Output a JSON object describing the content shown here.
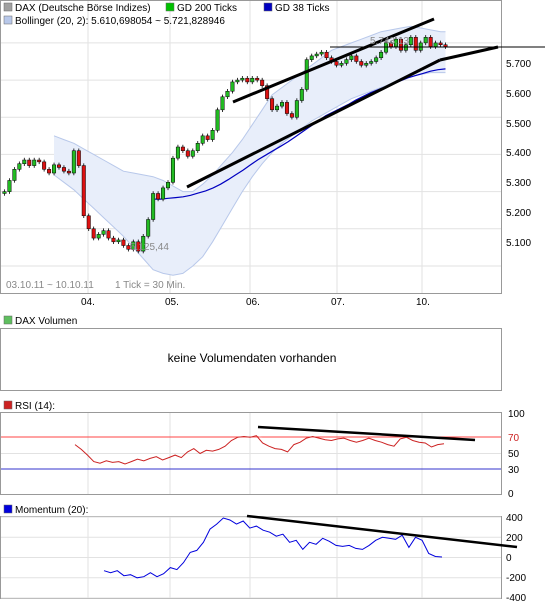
{
  "colors": {
    "dax": "#a0a0a0",
    "gd200": "#00c000",
    "gd38": "#0000c0",
    "bollinger_fill": "#e8eefa",
    "bollinger_edge": "#b8c8ea",
    "candle_up": "#22bb22",
    "candle_down": "#dd1111",
    "rsi_line": "#cc2222",
    "rsi_fill": "#ff7f7f",
    "rsi_upper": "#ff4444",
    "rsi_lower": "#3333cc",
    "momentum_line": "#0000dd",
    "grid": "#e2e2e2",
    "trendline": "#000000"
  },
  "main": {
    "legend": [
      {
        "label": "DAX (Deutsche Börse Indizes)",
        "color": "#a0a0a0"
      },
      {
        "label": "GD 200 Ticks",
        "color": "#00c000"
      },
      {
        "label": "GD 38 Ticks",
        "color": "#0000c0"
      },
      {
        "label": "Bollinger (20, 2): 5.610,698054 ~ 5.721,828946",
        "color": "#b8c8ea"
      }
    ],
    "date_range": "03.10.11 ~ 10.10.11",
    "tick_note": "1 Tick = 30 Min.",
    "high_label": "5.743,13",
    "low_label": "5.125,44",
    "y_ticks": [
      "5.700",
      "5.600",
      "5.500",
      "5.400",
      "5.300",
      "5.200",
      "5.100"
    ],
    "x_ticks": [
      "04.",
      "05.",
      "06.",
      "07.",
      "10."
    ]
  },
  "volume": {
    "title": "DAX Volumen",
    "message": "keine Volumendaten vorhanden"
  },
  "rsi": {
    "title": "RSI (14):",
    "y_ticks": [
      "100",
      "70",
      "50",
      "30",
      "0"
    ]
  },
  "momentum": {
    "title": "Momentum (20):",
    "y_ticks": [
      "400",
      "200",
      "0",
      "-200",
      "-400"
    ]
  },
  "chart_data": [
    {
      "type": "candlestick",
      "title": "DAX (Deutsche Börse Indizes)",
      "x_range": [
        "03.10.11",
        "10.10.11"
      ],
      "interval": "30 Min.",
      "ylim": [
        5030,
        5810
      ],
      "x_ticks": [
        "04.",
        "05.",
        "06.",
        "07.",
        "10."
      ],
      "y_ticks": [
        5700,
        5600,
        5500,
        5400,
        5300,
        5200,
        5100
      ],
      "close": [
        5300,
        5330,
        5360,
        5375,
        5385,
        5370,
        5385,
        5380,
        5360,
        5350,
        5372,
        5365,
        5355,
        5350,
        5410,
        5370,
        5235,
        5200,
        5175,
        5185,
        5195,
        5175,
        5165,
        5170,
        5155,
        5145,
        5165,
        5140,
        5180,
        5225,
        5295,
        5280,
        5310,
        5325,
        5390,
        5420,
        5410,
        5395,
        5410,
        5430,
        5450,
        5440,
        5465,
        5520,
        5555,
        5570,
        5595,
        5600,
        5605,
        5595,
        5605,
        5600,
        5585,
        5550,
        5520,
        5530,
        5540,
        5510,
        5500,
        5545,
        5575,
        5655,
        5665,
        5670,
        5675,
        5660,
        5650,
        5640,
        5645,
        5655,
        5665,
        5650,
        5640,
        5645,
        5650,
        5660,
        5675,
        5700,
        5690,
        5710,
        5680,
        5695,
        5715,
        5680,
        5700,
        5715,
        5690,
        5700,
        5695,
        5690
      ],
      "series": [
        {
          "name": "GD 38 Ticks",
          "start_index": 30,
          "values": [
            5280,
            5280,
            5282,
            5284,
            5286,
            5290,
            5296,
            5302,
            5310,
            5320,
            5332,
            5345,
            5358,
            5372,
            5386,
            5398,
            5410,
            5422,
            5434,
            5448,
            5462,
            5476,
            5490,
            5504,
            5514,
            5524,
            5534,
            5546,
            5556,
            5566,
            5574,
            5582,
            5590,
            5598,
            5606,
            5612,
            5618,
            5624,
            5628,
            5630
          ]
        }
      ],
      "bollinger": {
        "name": "Bollinger (20, 2)",
        "current": [
          5610.698054,
          5721.828946
        ],
        "upper": [
          5450,
          5440,
          5430,
          5415,
          5400,
          5385,
          5370,
          5355,
          5350,
          5345,
          5340,
          5330,
          5315,
          5300,
          5300,
          5320,
          5345,
          5375,
          5405,
          5440,
          5480,
          5520,
          5560,
          5580,
          5600,
          5620,
          5640,
          5660,
          5680,
          5690,
          5700,
          5710,
          5720,
          5730,
          5735,
          5740,
          5745,
          5740,
          5735,
          5730,
          5730
        ],
        "lower": [
          5345,
          5325,
          5305,
          5280,
          5255,
          5230,
          5205,
          5180,
          5150,
          5120,
          5090,
          5080,
          5075,
          5080,
          5100,
          5125,
          5165,
          5210,
          5255,
          5300,
          5340,
          5375,
          5405,
          5430,
          5450,
          5470,
          5490,
          5505,
          5520,
          5535,
          5550,
          5560,
          5570,
          5580,
          5590,
          5600,
          5610,
          5615,
          5620,
          5620,
          5620
        ]
      },
      "annotations": [
        "5.743,13",
        "5.125,44"
      ]
    },
    {
      "type": "line",
      "title": "RSI (14):",
      "ylim": [
        0,
        100
      ],
      "y_ticks": [
        100,
        70,
        50,
        30,
        0
      ],
      "levels": [
        70,
        30
      ],
      "values": [
        61,
        55,
        48,
        40,
        38,
        41,
        39,
        40,
        37,
        40,
        43,
        41,
        44,
        46,
        42,
        45,
        48,
        45,
        52,
        56,
        50,
        54,
        53,
        55,
        59,
        66,
        70,
        71,
        70,
        72,
        63,
        59,
        56,
        55,
        52,
        61,
        64,
        69,
        71,
        69,
        67,
        66,
        68,
        69,
        66,
        64,
        66,
        69,
        66,
        64,
        61,
        59,
        68,
        70,
        66,
        64,
        63,
        58,
        61,
        62
      ]
    },
    {
      "type": "line",
      "title": "Momentum (20):",
      "ylim": [
        -400,
        400
      ],
      "y_ticks": [
        400,
        200,
        0,
        -200,
        -400
      ],
      "values": [
        -130,
        -150,
        -130,
        -180,
        -170,
        -200,
        -190,
        -150,
        -190,
        -160,
        -100,
        -120,
        -50,
        50,
        70,
        150,
        280,
        330,
        390,
        370,
        330,
        360,
        290,
        310,
        270,
        250,
        210,
        230,
        150,
        170,
        80,
        150,
        130,
        190,
        160,
        120,
        110,
        120,
        90,
        80,
        120,
        170,
        200,
        190,
        180,
        220,
        100,
        200,
        170,
        40,
        10,
        5
      ]
    }
  ]
}
